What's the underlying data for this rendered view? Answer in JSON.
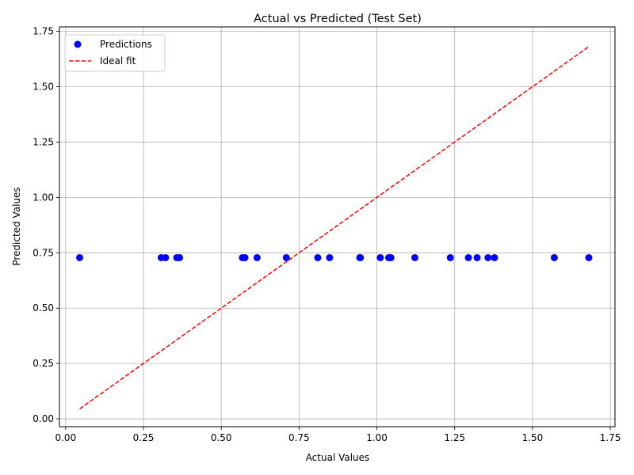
{
  "chart_data": {
    "type": "scatter",
    "title": "Actual vs Predicted (Test Set)",
    "xlabel": "Actual Values",
    "ylabel": "Predicted Values",
    "xlim": [
      -0.02,
      1.765
    ],
    "ylim": [
      -0.0355,
      1.77
    ],
    "xticks": [
      0.0,
      0.25,
      0.5,
      0.75,
      1.0,
      1.25,
      1.5,
      1.75
    ],
    "xtick_labels": [
      "0.00",
      "0.25",
      "0.50",
      "0.75",
      "1.00",
      "1.25",
      "1.50",
      "1.75"
    ],
    "yticks": [
      0.0,
      0.25,
      0.5,
      0.75,
      1.0,
      1.25,
      1.5,
      1.75
    ],
    "ytick_labels": [
      "0.00",
      "0.25",
      "0.50",
      "0.75",
      "1.00",
      "1.25",
      "1.50",
      "1.75"
    ],
    "grid": true,
    "legend_position": "top-left",
    "series": [
      {
        "name": "Predictions",
        "kind": "scatter",
        "color": "#0000ff",
        "points": [
          [
            0.045,
            0.728
          ],
          [
            0.307,
            0.728
          ],
          [
            0.321,
            0.728
          ],
          [
            0.357,
            0.728
          ],
          [
            0.366,
            0.728
          ],
          [
            0.568,
            0.728
          ],
          [
            0.576,
            0.728
          ],
          [
            0.615,
            0.728
          ],
          [
            0.709,
            0.728
          ],
          [
            0.81,
            0.728
          ],
          [
            0.848,
            0.728
          ],
          [
            0.945,
            0.728
          ],
          [
            0.947,
            0.728
          ],
          [
            1.011,
            0.728
          ],
          [
            1.038,
            0.728
          ],
          [
            1.045,
            0.728
          ],
          [
            1.122,
            0.728
          ],
          [
            1.236,
            0.728
          ],
          [
            1.294,
            0.728
          ],
          [
            1.322,
            0.728
          ],
          [
            1.357,
            0.728
          ],
          [
            1.378,
            0.728
          ],
          [
            1.57,
            0.728
          ],
          [
            1.681,
            0.728
          ]
        ]
      },
      {
        "name": "Ideal fit",
        "kind": "line",
        "style": "dashed",
        "color": "#ff0000",
        "points": [
          [
            0.045,
            0.045
          ],
          [
            1.681,
            1.681
          ]
        ]
      }
    ]
  }
}
